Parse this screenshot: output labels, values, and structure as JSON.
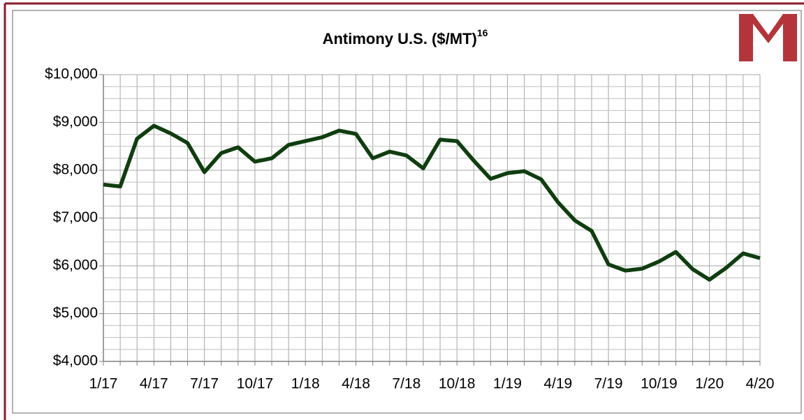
{
  "chart_data": {
    "type": "line",
    "title": "Antimony U.S. ($/MT)",
    "title_superscript": "16",
    "categories": [
      "1/17",
      null,
      null,
      "4/17",
      null,
      null,
      "7/17",
      null,
      null,
      "10/17",
      null,
      null,
      "1/18",
      null,
      null,
      "4/18",
      null,
      null,
      "7/18",
      null,
      null,
      "10/18",
      null,
      null,
      "1/19",
      null,
      null,
      "4/19",
      null,
      null,
      "7/19",
      null,
      null,
      "10/19",
      null,
      null,
      "1/20",
      null,
      null,
      "4/20"
    ],
    "series": [
      {
        "name": "Antimony U.S.",
        "color": "#0f3d0f",
        "values": [
          7700,
          7660,
          8660,
          8930,
          8770,
          8570,
          7960,
          8360,
          8480,
          8180,
          8250,
          8530,
          8610,
          8690,
          8830,
          8760,
          8250,
          8390,
          8310,
          8040,
          8640,
          8610,
          8200,
          7820,
          7940,
          7980,
          7810,
          7330,
          6950,
          6730,
          6030,
          5900,
          5940,
          6090,
          6290,
          5930,
          5710,
          5960,
          6260,
          6160
        ]
      }
    ],
    "ylim": [
      4000,
      10000
    ],
    "yticks": [
      {
        "value": 4000,
        "label": "$4,000"
      },
      {
        "value": 5000,
        "label": "$5,000"
      },
      {
        "value": 6000,
        "label": "$6,000"
      },
      {
        "value": 7000,
        "label": "$7,000"
      },
      {
        "value": 8000,
        "label": "$8,000"
      },
      {
        "value": 9000,
        "label": "$9,000"
      },
      {
        "value": 10000,
        "label": "$10,000"
      }
    ],
    "grid": true
  }
}
